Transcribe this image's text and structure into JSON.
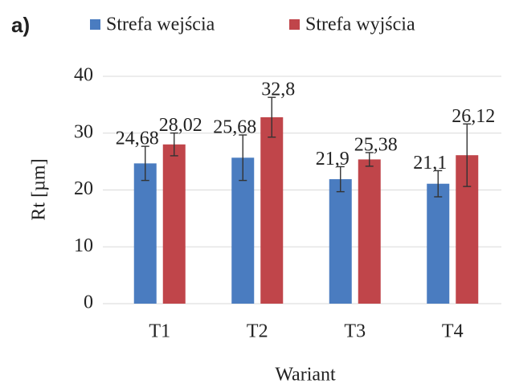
{
  "panel_label": "a)",
  "chart_data": {
    "type": "bar",
    "categories": [
      "T1",
      "T2",
      "T3",
      "T4"
    ],
    "series": [
      {
        "name": "Strefa wejścia",
        "color": "#4a7cc0",
        "values": [
          24.68,
          25.68,
          21.9,
          21.1
        ],
        "value_labels": [
          "24,68",
          "25,68",
          "21,9",
          "21,1"
        ],
        "errors": [
          3,
          4,
          2.2,
          2.3
        ]
      },
      {
        "name": "Strefa wyjścia",
        "color": "#c0454a",
        "values": [
          28.02,
          32.8,
          25.38,
          26.12
        ],
        "value_labels": [
          "28,02",
          "32,8",
          "25,38",
          "26,12"
        ],
        "errors": [
          2,
          3.5,
          1.2,
          5.5
        ]
      }
    ],
    "y_label": "Rt [µm]",
    "x_label": "Wariant",
    "ylim": [
      0,
      40
    ],
    "yticks": [
      0,
      10,
      20,
      30,
      40
    ],
    "grid": true,
    "legend": "top"
  }
}
